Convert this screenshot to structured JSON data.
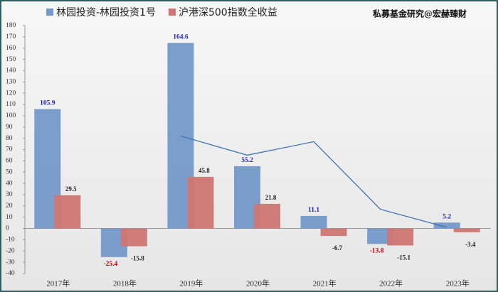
{
  "chart_data": {
    "type": "bar",
    "annotation": "私募基金研究@宏赫臻财",
    "categories": [
      "2017年",
      "2018年",
      "2019年",
      "2020年",
      "2021年",
      "2022年",
      "2023年"
    ],
    "series": [
      {
        "name": "林园投资-林园投资1号",
        "color": "#7599c9",
        "values": [
          105.9,
          -25.4,
          164.6,
          55.2,
          11.1,
          -13.8,
          5.2
        ]
      },
      {
        "name": "沪港深500指数全收益",
        "color": "#cf7673",
        "values": [
          29.5,
          -15.8,
          45.8,
          21.8,
          -6.7,
          -15.1,
          -3.4
        ]
      },
      {
        "type": "line",
        "color": "#3f72b0",
        "values": [
          null,
          null,
          82,
          65,
          77,
          17,
          1
        ]
      }
    ],
    "ylim": [
      -40,
      180
    ],
    "yticks": [
      -40,
      -30,
      -20,
      -10,
      0,
      10,
      20,
      30,
      40,
      50,
      60,
      70,
      80,
      90,
      100,
      110,
      120,
      130,
      140,
      150,
      160,
      170,
      180
    ],
    "grid": false,
    "data_labels": true,
    "legend": "top-left"
  }
}
